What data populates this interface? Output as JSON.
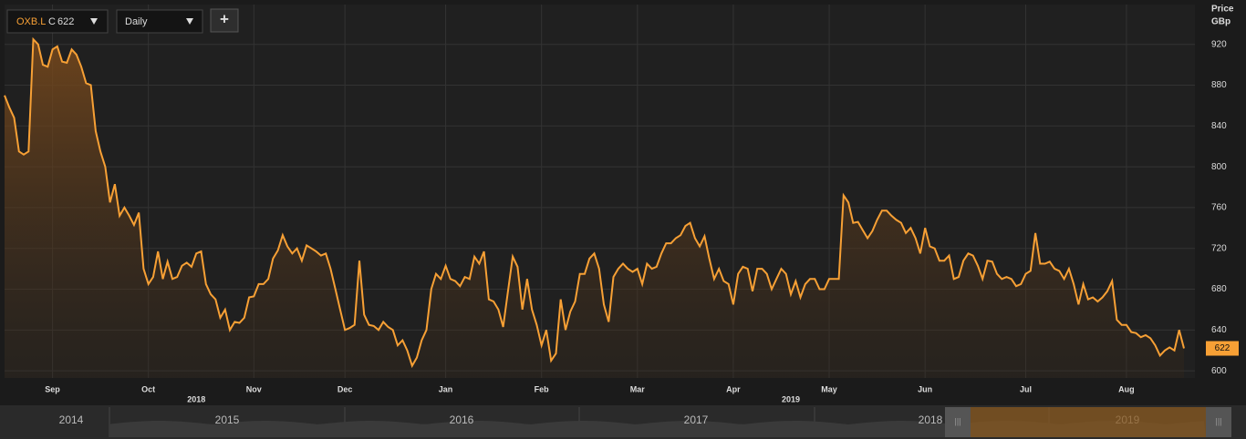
{
  "toolbar": {
    "symbol": "OXB.L",
    "close_label": "C",
    "interval": "Daily",
    "add": "+"
  },
  "chart_data": {
    "type": "line",
    "y_axis_label": "Price",
    "y_axis_unit": "GBp",
    "values": [
      870,
      858,
      848,
      815,
      812,
      815,
      925,
      920,
      900,
      898,
      915,
      918,
      903,
      902,
      915,
      910,
      898,
      882,
      880,
      835,
      815,
      800,
      765,
      783,
      752,
      760,
      752,
      743,
      755,
      700,
      685,
      692,
      717,
      690,
      707,
      690,
      692,
      703,
      706,
      702,
      715,
      717,
      685,
      675,
      670,
      652,
      660,
      640,
      648,
      647,
      652,
      672,
      673,
      685,
      685,
      690,
      710,
      718,
      733,
      722,
      715,
      720,
      708,
      723,
      720,
      717,
      713,
      715,
      700,
      680,
      660,
      640,
      642,
      645,
      708,
      655,
      645,
      644,
      640,
      648,
      643,
      640,
      625,
      630,
      620,
      605,
      613,
      630,
      640,
      680,
      695,
      690,
      703,
      690,
      688,
      683,
      692,
      690,
      712,
      705,
      717,
      670,
      668,
      660,
      643,
      678,
      712,
      702,
      660,
      690,
      660,
      645,
      625,
      640,
      610,
      617,
      670,
      640,
      658,
      668,
      695,
      695,
      710,
      715,
      700,
      665,
      648,
      692,
      700,
      705,
      700,
      697,
      700,
      685,
      705,
      700,
      702,
      715,
      725,
      725,
      730,
      733,
      742,
      745,
      730,
      722,
      732,
      710,
      690,
      700,
      688,
      685,
      665,
      695,
      702,
      700,
      678,
      700,
      700,
      695,
      680,
      690,
      700,
      695,
      675,
      688,
      672,
      685,
      690,
      690,
      680,
      680,
      690,
      690,
      690,
      772,
      765,
      745,
      746,
      738,
      730,
      737,
      748,
      757,
      757,
      752,
      748,
      745,
      735,
      740,
      730,
      715,
      740,
      722,
      720,
      708,
      708,
      713,
      690,
      692,
      708,
      715,
      713,
      703,
      690,
      708,
      707,
      695,
      690,
      692,
      690,
      683,
      685,
      695,
      698,
      735,
      705,
      705,
      707,
      700,
      698,
      690,
      700,
      685,
      665,
      685,
      670,
      672,
      668,
      672,
      678,
      688,
      650,
      645,
      645,
      638,
      637,
      633,
      635,
      632,
      625,
      615,
      620,
      623,
      620,
      640,
      622
    ],
    "xticks": [
      {
        "value": 10,
        "label": "Sep"
      },
      {
        "value": 30,
        "label": "Oct"
      },
      {
        "value": 52,
        "label": "Nov"
      },
      {
        "value": 71,
        "label": "Dec"
      },
      {
        "value": 92,
        "label": "Jan"
      },
      {
        "value": 112,
        "label": "Feb"
      },
      {
        "value": 132,
        "label": "Mar"
      },
      {
        "value": 152,
        "label": "Apr"
      },
      {
        "value": 172,
        "label": "May"
      },
      {
        "value": 192,
        "label": "Jun"
      },
      {
        "value": 213,
        "label": "Jul"
      },
      {
        "value": 234,
        "label": "Aug"
      }
    ],
    "year_labels": [
      {
        "value": 40,
        "label": "2018"
      },
      {
        "value": 164,
        "label": "2019"
      }
    ],
    "ylim": [
      593,
      959
    ],
    "yticks": [
      600,
      640,
      680,
      720,
      760,
      800,
      840,
      880,
      920
    ],
    "color": "#f7a035",
    "grid": true
  },
  "navigator": {
    "years": [
      "2014",
      "2015",
      "2016",
      "2017",
      "2018",
      "2019"
    ]
  }
}
